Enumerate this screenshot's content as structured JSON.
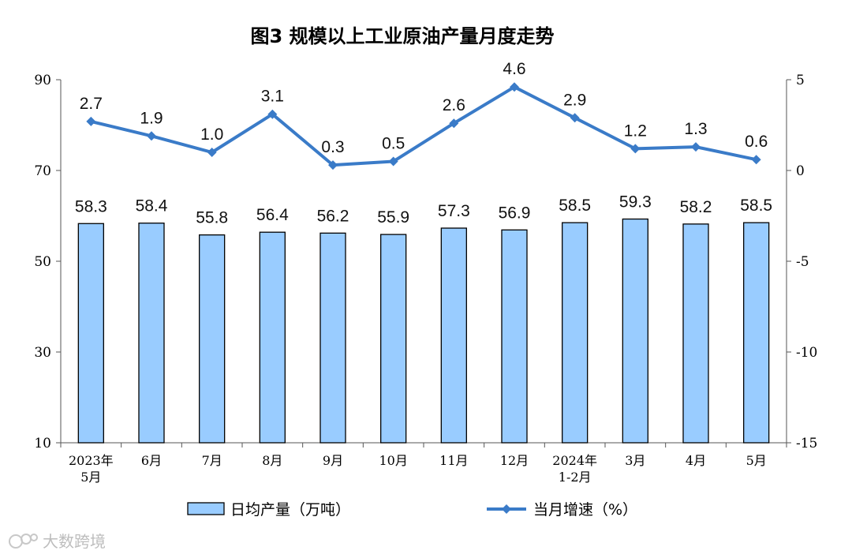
{
  "chart_data": {
    "type": "bar",
    "title": "图3  规模以上工业原油产量月度走势",
    "categories": [
      [
        "2023年",
        "5月"
      ],
      [
        "6月"
      ],
      [
        "7月"
      ],
      [
        "8月"
      ],
      [
        "9月"
      ],
      [
        "10月"
      ],
      [
        "11月"
      ],
      [
        "12月"
      ],
      [
        "2024年",
        "1-2月"
      ],
      [
        "3月"
      ],
      [
        "4月"
      ],
      [
        "5月"
      ]
    ],
    "series": [
      {
        "name": "日均产量（万吨）",
        "type": "bar",
        "axis": "left",
        "color": "#99ccff",
        "values": [
          58.3,
          58.4,
          55.8,
          56.4,
          56.2,
          55.9,
          57.3,
          56.9,
          58.5,
          59.3,
          58.2,
          58.5
        ],
        "labels": [
          "58.3",
          "58.4",
          "55.8",
          "56.4",
          "56.2",
          "55.9",
          "57.3",
          "56.9",
          "58.5",
          "59.3",
          "58.2",
          "58.5"
        ]
      },
      {
        "name": "当月增速（%）",
        "type": "line",
        "axis": "right",
        "color": "#3a7bc8",
        "values": [
          2.7,
          1.9,
          1.0,
          3.1,
          0.3,
          0.5,
          2.6,
          4.6,
          2.9,
          1.2,
          1.3,
          0.6
        ],
        "labels": [
          "2.7",
          "1.9",
          "1.0",
          "3.1",
          "0.3",
          "0.5",
          "2.6",
          "4.6",
          "2.9",
          "1.2",
          "1.3",
          "0.6"
        ]
      }
    ],
    "y_left": {
      "min": 10,
      "max": 90,
      "ticks": [
        "10",
        "30",
        "50",
        "70",
        "90"
      ],
      "tick_values": [
        10,
        30,
        50,
        70,
        90
      ]
    },
    "y_right": {
      "min": -15,
      "max": 5,
      "ticks": [
        "-15",
        "-10",
        "-5",
        "0",
        "5"
      ],
      "tick_values": [
        -15,
        -10,
        -5,
        0,
        5
      ]
    },
    "grid": false,
    "legend_position": "bottom"
  },
  "watermark": "大数跨境"
}
